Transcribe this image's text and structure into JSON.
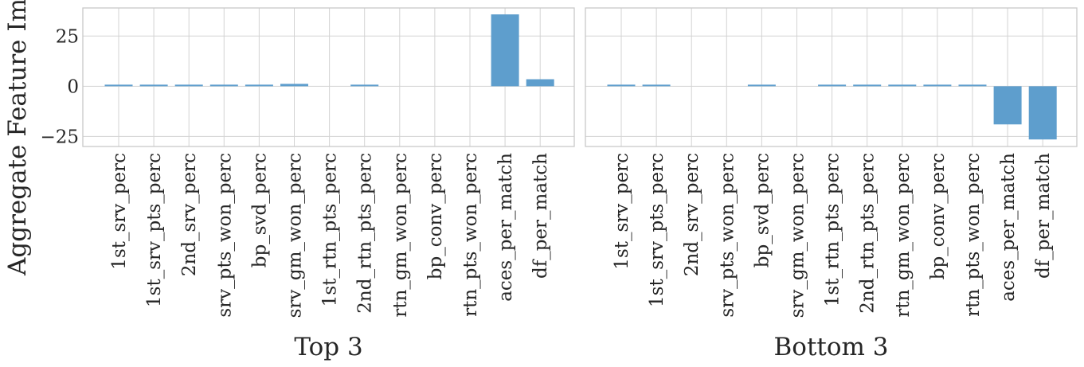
{
  "chart_data": {
    "ylabel": "Aggregate Feature Im",
    "ylim": [
      -30,
      39
    ],
    "yticks": [
      {
        "value": 25,
        "label": "25"
      },
      {
        "value": 0,
        "label": "0"
      },
      {
        "value": -25,
        "label": "−25"
      }
    ],
    "grid": true,
    "panels": [
      {
        "type": "bar",
        "xlabel": "Top 3",
        "categories": [
          "1st_srv_perc",
          "1st_srv_pts_perc",
          "2nd_srv_perc",
          "srv_pts_won_perc",
          "bp_svd_perc",
          "srv_gm_won_perc",
          "1st_rtn_pts_perc",
          "2nd_rtn_pts_perc",
          "rtn_gm_won_perc",
          "bp_conv_perc",
          "rtn_pts_won_perc",
          "aces_per_match",
          "df_per_match"
        ],
        "values": [
          0.5,
          0.8,
          0.8,
          0.8,
          0.8,
          1.2,
          0.0,
          0.5,
          0.0,
          0.0,
          0.0,
          35.8,
          3.5
        ]
      },
      {
        "type": "bar",
        "xlabel": "Bottom 3",
        "categories": [
          "1st_srv_perc",
          "1st_srv_pts_perc",
          "2nd_srv_perc",
          "srv_pts_won_perc",
          "bp_svd_perc",
          "srv_gm_won_perc",
          "1st_rtn_pts_perc",
          "2nd_rtn_pts_perc",
          "rtn_gm_won_perc",
          "bp_conv_perc",
          "rtn_pts_won_perc",
          "aces_per_match",
          "df_per_match"
        ],
        "values": [
          0.8,
          0.5,
          0.0,
          0.0,
          0.5,
          0.0,
          0.5,
          0.8,
          0.8,
          0.5,
          0.8,
          -19.0,
          -26.5
        ]
      }
    ],
    "bar_color": "#5e9ecd"
  }
}
